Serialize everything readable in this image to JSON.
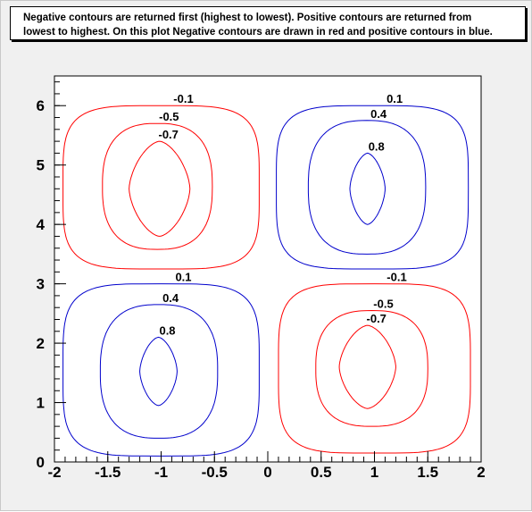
{
  "title": {
    "line1": "Negative contours are returned first (highest to lowest). Positive contours are returned from",
    "line2": "lowest to highest. On this plot Negative contours are drawn in red and positive contours in blue."
  },
  "colors": {
    "negative": "#ff0000",
    "positive": "#0000cc",
    "frame": "#000000",
    "plot_background": "#ffffff",
    "canvas_background": "#f0f0f0"
  },
  "chart_data": {
    "type": "contour",
    "xlim": [
      -2,
      2
    ],
    "ylim": [
      0,
      6.5
    ],
    "x_ticks": [
      "-2",
      "-1.5",
      "-1",
      "-0.5",
      "0",
      "0.5",
      "1",
      "1.5",
      "2"
    ],
    "y_ticks": [
      "0",
      "1",
      "2",
      "3",
      "4",
      "5",
      "6"
    ],
    "grid": false,
    "contour_levels": [
      "-0.7",
      "-0.5",
      "-0.1",
      "0.1",
      "0.4",
      "0.8"
    ],
    "lobes": [
      {
        "sign": "negative",
        "center": [
          -1.0,
          4.6
        ],
        "contours": [
          {
            "level": -0.1,
            "label": "-0.1",
            "x_range": [
              -1.92,
              -0.08
            ],
            "y_range": [
              3.25,
              6.0
            ]
          },
          {
            "level": -0.5,
            "label": "-0.5",
            "x_range": [
              -1.55,
              -0.52
            ],
            "y_range": [
              3.58,
              5.7
            ]
          },
          {
            "level": -0.7,
            "label": "-0.7",
            "x_range": [
              -1.3,
              -0.73
            ],
            "y_range": [
              3.8,
              5.4
            ]
          }
        ]
      },
      {
        "sign": "positive",
        "center": [
          0.95,
          4.6
        ],
        "contours": [
          {
            "level": 0.1,
            "label": "0.1",
            "x_range": [
              0.08,
              1.88
            ],
            "y_range": [
              3.25,
              6.0
            ]
          },
          {
            "level": 0.4,
            "label": "0.4",
            "x_range": [
              0.38,
              1.48
            ],
            "y_range": [
              3.5,
              5.75
            ]
          },
          {
            "level": 0.8,
            "label": "0.8",
            "x_range": [
              0.77,
              1.1
            ],
            "y_range": [
              4.0,
              5.2
            ]
          }
        ]
      },
      {
        "sign": "positive",
        "center": [
          -1.0,
          1.5
        ],
        "contours": [
          {
            "level": 0.1,
            "label": "0.1",
            "x_range": [
              -1.92,
              -0.08
            ],
            "y_range": [
              0.1,
              3.0
            ]
          },
          {
            "level": 0.4,
            "label": "0.4",
            "x_range": [
              -1.57,
              -0.47
            ],
            "y_range": [
              0.4,
              2.65
            ]
          },
          {
            "level": 0.8,
            "label": "0.8",
            "x_range": [
              -1.2,
              -0.85
            ],
            "y_range": [
              0.95,
              2.1
            ]
          }
        ]
      },
      {
        "sign": "negative",
        "center": [
          0.95,
          1.6
        ],
        "contours": [
          {
            "level": -0.1,
            "label": "-0.1",
            "x_range": [
              0.1,
              1.9
            ],
            "y_range": [
              0.15,
              3.0
            ]
          },
          {
            "level": -0.5,
            "label": "-0.5",
            "x_range": [
              0.45,
              1.5
            ],
            "y_range": [
              0.6,
              2.55
            ]
          },
          {
            "level": -0.7,
            "label": "-0.7",
            "x_range": [
              0.67,
              1.2
            ],
            "y_range": [
              0.9,
              2.3
            ]
          }
        ]
      }
    ]
  }
}
